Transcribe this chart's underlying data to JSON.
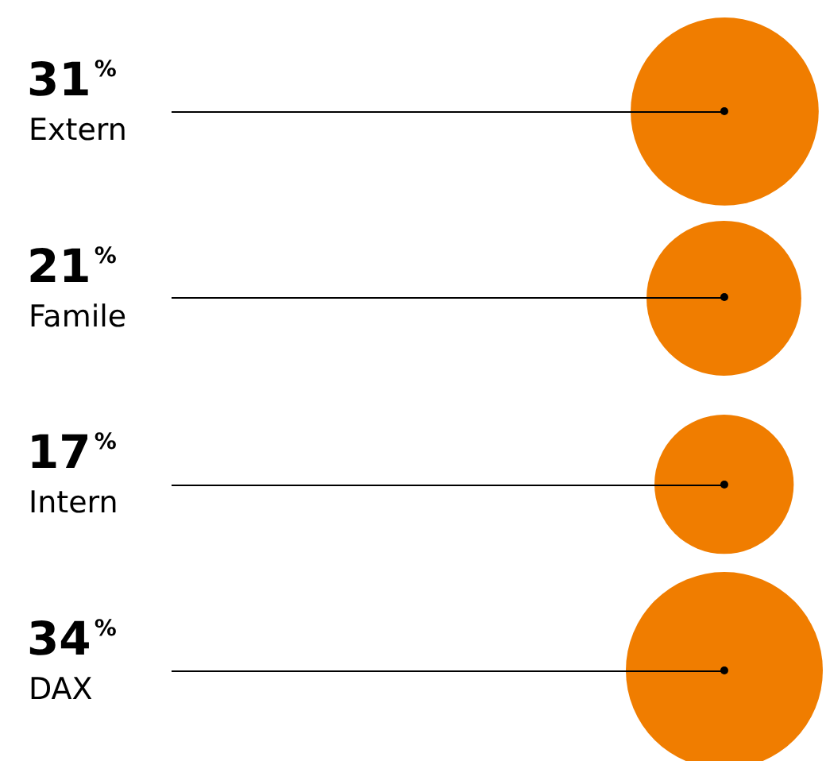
{
  "chart_data": {
    "type": "other",
    "categories": [
      "Extern",
      "Famile",
      "Intern",
      "DAX"
    ],
    "values": [
      31,
      21,
      17,
      34
    ],
    "value_labels": [
      "31%",
      "21%",
      "17%",
      "34%"
    ],
    "color": "#f07d00"
  }
}
